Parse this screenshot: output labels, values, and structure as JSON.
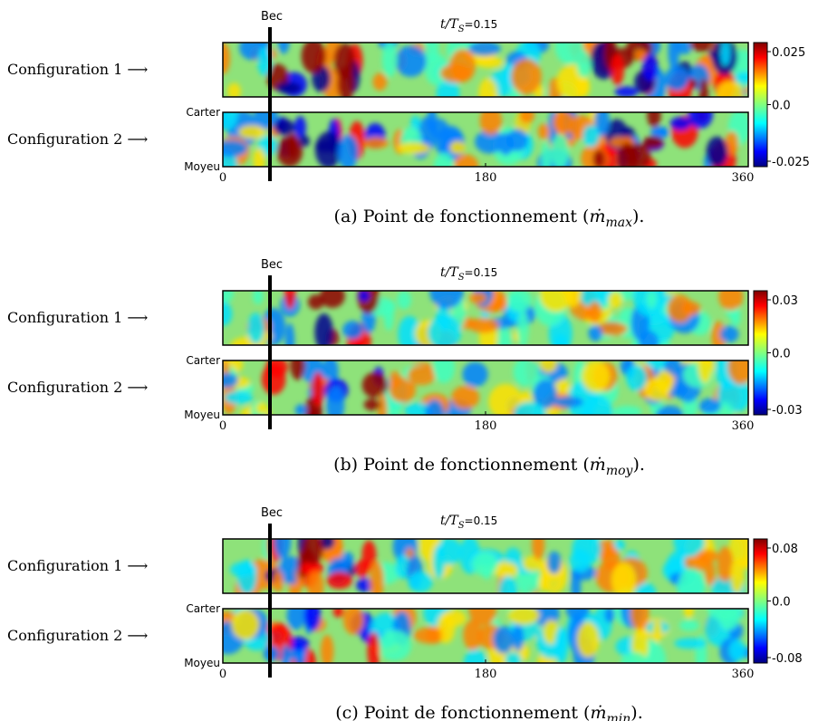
{
  "panels": [
    {
      "bec": "Bec",
      "time": {
        "main": "t/T",
        "sub": "S",
        "rest": "=0.15"
      },
      "rows": [
        "Configuration 1 ⟶",
        "Configuration 2 ⟶"
      ],
      "carter": "Carter",
      "moyeu": "Moyeu",
      "x_ticks": [
        "0",
        "180",
        "360"
      ],
      "colorbar_ticks": [
        "0.025",
        "0.0",
        "-0.025"
      ],
      "caption": {
        "pre": "(a) Point de fonctionnement (",
        "m": "ṁ",
        "sub": "max",
        "post": ")."
      }
    },
    {
      "bec": "Bec",
      "time": {
        "main": "t/T",
        "sub": "S",
        "rest": "=0.15"
      },
      "rows": [
        "Configuration 1 ⟶",
        "Configuration 2 ⟶"
      ],
      "carter": "Carter",
      "moyeu": "Moyeu",
      "x_ticks": [
        "0",
        "180",
        "360"
      ],
      "colorbar_ticks": [
        "0.03",
        "0.0",
        "-0.03"
      ],
      "caption": {
        "pre": "(b) Point de fonctionnement (",
        "m": "ṁ",
        "sub": "moy",
        "post": ")."
      }
    },
    {
      "bec": "Bec",
      "time": {
        "main": "t/T",
        "sub": "S",
        "rest": "=0.15"
      },
      "rows": [
        "Configuration 1 ⟶",
        "Configuration 2 ⟶"
      ],
      "carter": "Carter",
      "moyeu": "Moyeu",
      "x_ticks": [
        "0",
        "180",
        "360"
      ],
      "colorbar_ticks": [
        "0.08",
        "0.0",
        "-0.08"
      ],
      "caption": {
        "pre": "(c) Point de fonctionnement (",
        "m": "ṁ",
        "sub": "min",
        "post": ")."
      }
    }
  ]
}
